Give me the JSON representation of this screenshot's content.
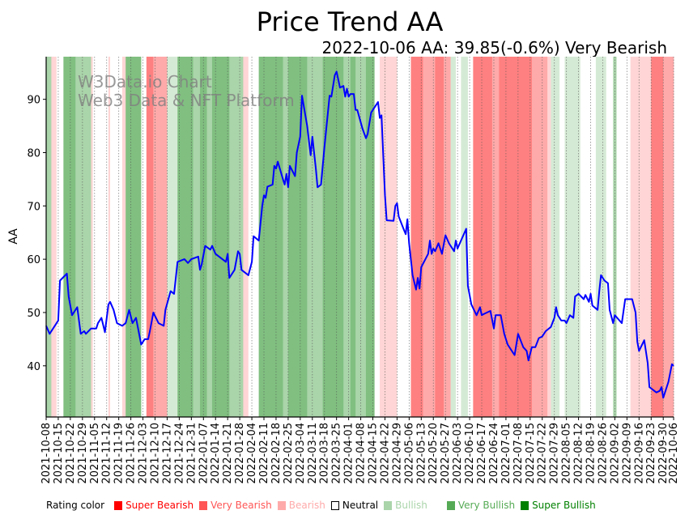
{
  "chart_data": {
    "type": "line",
    "title": "Price Trend AA",
    "subtitle": "2022-10-06 AA: 39.85(-0.6%) Very Bearish",
    "watermark": [
      "W3Data.io Chart",
      "Web3 Data & NFT Platform"
    ],
    "xlabel": "",
    "ylabel": "AA",
    "start_date": "2021-10-08",
    "end_date": "2022-10-06",
    "ylim": [
      30.4,
      98.0
    ],
    "yticks": [
      40,
      50,
      60,
      70,
      80,
      90
    ],
    "xticks": [
      "2021-10-08",
      "2021-10-15",
      "2021-10-22",
      "2021-10-29",
      "2021-11-05",
      "2021-11-12",
      "2021-11-19",
      "2021-11-26",
      "2021-12-03",
      "2021-12-10",
      "2021-12-17",
      "2021-12-24",
      "2021-12-31",
      "2022-01-07",
      "2022-01-14",
      "2022-01-21",
      "2022-01-28",
      "2022-02-04",
      "2022-02-11",
      "2022-02-18",
      "2022-02-25",
      "2022-03-04",
      "2022-03-11",
      "2022-03-18",
      "2022-03-25",
      "2022-04-01",
      "2022-04-08",
      "2022-04-15",
      "2022-04-22",
      "2022-04-29",
      "2022-05-06",
      "2022-05-13",
      "2022-05-20",
      "2022-05-27",
      "2022-06-03",
      "2022-06-10",
      "2022-06-17",
      "2022-06-24",
      "2022-07-01",
      "2022-07-08",
      "2022-07-15",
      "2022-07-22",
      "2022-07-29",
      "2022-08-05",
      "2022-08-12",
      "2022-08-19",
      "2022-08-26",
      "2022-09-02",
      "2022-09-09",
      "2022-09-16",
      "2022-09-23",
      "2022-09-30",
      "2022-10-06"
    ],
    "series": [
      {
        "name": "AA",
        "color": "#0000ff",
        "points_day_value": [
          [
            0,
            47.5
          ],
          [
            2,
            46
          ],
          [
            7,
            48.5
          ],
          [
            8,
            56
          ],
          [
            12,
            57.3
          ],
          [
            13,
            53
          ],
          [
            15,
            49.5
          ],
          [
            18,
            51
          ],
          [
            20,
            46
          ],
          [
            22,
            46.5
          ],
          [
            23,
            46
          ],
          [
            26,
            47
          ],
          [
            29,
            47
          ],
          [
            30,
            48
          ],
          [
            32,
            49
          ],
          [
            34,
            46.3
          ],
          [
            36,
            51.5
          ],
          [
            37,
            52
          ],
          [
            39,
            50.5
          ],
          [
            41,
            48
          ],
          [
            44,
            47.5
          ],
          [
            46,
            48
          ],
          [
            48,
            50.5
          ],
          [
            50,
            48
          ],
          [
            52,
            49
          ],
          [
            55,
            44
          ],
          [
            57,
            45
          ],
          [
            59,
            45
          ],
          [
            60,
            46.5
          ],
          [
            62,
            50
          ],
          [
            65,
            48
          ],
          [
            68,
            47.5
          ],
          [
            69,
            50.5
          ],
          [
            72,
            54
          ],
          [
            74,
            53.5
          ],
          [
            76,
            59.5
          ],
          [
            80,
            60
          ],
          [
            82,
            59.3
          ],
          [
            84,
            60
          ],
          [
            88,
            60.5
          ],
          [
            89,
            58
          ],
          [
            90,
            59
          ],
          [
            92,
            62.5
          ],
          [
            95,
            61.8
          ],
          [
            96,
            62.5
          ],
          [
            98,
            61
          ],
          [
            104,
            59.5
          ],
          [
            105,
            61
          ],
          [
            106,
            56.5
          ],
          [
            109,
            58
          ],
          [
            111,
            61.5
          ],
          [
            112,
            61
          ],
          [
            113,
            58
          ],
          [
            117,
            57
          ],
          [
            119,
            59.5
          ],
          [
            120,
            64.3
          ],
          [
            123,
            63.5
          ],
          [
            125,
            70
          ],
          [
            126,
            72
          ],
          [
            127,
            71.5
          ],
          [
            128,
            73.6
          ],
          [
            131,
            74
          ],
          [
            132,
            77.5
          ],
          [
            133,
            77
          ],
          [
            134,
            78.3
          ],
          [
            137,
            75
          ],
          [
            138,
            74
          ],
          [
            139,
            76
          ],
          [
            140,
            73.5
          ],
          [
            141,
            77.5
          ],
          [
            144,
            75.6
          ],
          [
            145,
            80
          ],
          [
            147,
            83
          ],
          [
            148,
            90.7
          ],
          [
            151,
            85
          ],
          [
            153,
            79.5
          ],
          [
            154,
            83
          ],
          [
            156,
            77
          ],
          [
            157,
            73.5
          ],
          [
            159,
            74
          ],
          [
            161,
            81
          ],
          [
            164,
            90.7
          ],
          [
            165,
            90.5
          ],
          [
            167,
            94.5
          ],
          [
            168,
            95.2
          ],
          [
            170,
            92.2
          ],
          [
            172,
            92.5
          ],
          [
            173,
            90.5
          ],
          [
            174,
            92
          ],
          [
            175,
            90.5
          ],
          [
            176,
            91
          ],
          [
            178,
            91
          ],
          [
            179,
            88
          ],
          [
            180,
            88
          ],
          [
            183,
            84.5
          ],
          [
            185,
            82.7
          ],
          [
            186,
            83.5
          ],
          [
            188,
            87.5
          ],
          [
            192,
            89.5
          ],
          [
            193,
            86.5
          ],
          [
            194,
            87
          ],
          [
            196,
            72
          ],
          [
            197,
            67.3
          ],
          [
            201,
            67.2
          ],
          [
            202,
            70
          ],
          [
            203,
            70.5
          ],
          [
            204,
            68
          ],
          [
            207,
            65.5
          ],
          [
            208,
            64.7
          ],
          [
            209,
            67.5
          ],
          [
            210,
            63
          ],
          [
            212,
            57
          ],
          [
            214,
            54.3
          ],
          [
            215,
            56.5
          ],
          [
            216,
            54.5
          ],
          [
            217,
            58.5
          ],
          [
            221,
            61
          ],
          [
            222,
            63.5
          ],
          [
            223,
            61
          ],
          [
            224,
            62
          ],
          [
            225,
            61.5
          ],
          [
            227,
            63
          ],
          [
            229,
            61
          ],
          [
            231,
            64.5
          ],
          [
            233,
            63
          ],
          [
            236,
            61.5
          ],
          [
            237,
            63.5
          ],
          [
            238,
            62
          ],
          [
            240,
            63.5
          ],
          [
            243,
            65.7
          ],
          [
            244,
            55
          ],
          [
            246,
            51.5
          ],
          [
            249,
            49.5
          ],
          [
            251,
            51
          ],
          [
            252,
            49.5
          ],
          [
            253,
            49.7
          ],
          [
            257,
            50.3
          ],
          [
            259,
            47
          ],
          [
            260,
            49.5
          ],
          [
            263,
            49.5
          ],
          [
            265,
            46
          ],
          [
            267,
            44
          ],
          [
            270,
            42.5
          ],
          [
            271,
            42
          ],
          [
            273,
            46
          ],
          [
            276,
            43.5
          ],
          [
            278,
            42.8
          ],
          [
            279,
            41
          ],
          [
            281,
            43.5
          ],
          [
            283,
            43.5
          ],
          [
            285,
            45.2
          ],
          [
            287,
            45.5
          ],
          [
            289,
            46.5
          ],
          [
            292,
            47.3
          ],
          [
            294,
            49
          ],
          [
            295,
            51
          ],
          [
            296,
            49.5
          ],
          [
            298,
            48.5
          ],
          [
            300,
            48.5
          ],
          [
            301,
            48
          ],
          [
            303,
            49.5
          ],
          [
            305,
            49
          ],
          [
            306,
            53
          ],
          [
            308,
            53.5
          ],
          [
            311,
            52.5
          ],
          [
            312,
            53.3
          ],
          [
            314,
            52
          ],
          [
            315,
            53.5
          ],
          [
            316,
            51.3
          ],
          [
            319,
            50.5
          ],
          [
            320,
            54
          ],
          [
            321,
            57
          ],
          [
            323,
            56
          ],
          [
            325,
            55.5
          ],
          [
            326,
            50.5
          ],
          [
            328,
            48
          ],
          [
            329,
            49.5
          ],
          [
            333,
            48
          ],
          [
            335,
            52.5
          ],
          [
            339,
            52.5
          ],
          [
            341,
            50
          ],
          [
            342,
            44.5
          ],
          [
            343,
            42.8
          ],
          [
            346,
            44.8
          ],
          [
            348,
            40.5
          ],
          [
            349,
            36
          ],
          [
            353,
            35
          ],
          [
            355,
            35.3
          ],
          [
            356,
            36
          ],
          [
            357,
            34
          ],
          [
            360,
            37
          ],
          [
            362,
            40.3
          ],
          [
            363,
            40
          ]
        ]
      }
    ],
    "rating_bands_day_range": [
      [
        0,
        3,
        "very_bullish"
      ],
      [
        3,
        6,
        "bearish"
      ],
      [
        6,
        10,
        "neutral"
      ],
      [
        10,
        17,
        "super_bullish"
      ],
      [
        17,
        26,
        "very_bullish"
      ],
      [
        26,
        27,
        "bearish"
      ],
      [
        27,
        36,
        "neutral"
      ],
      [
        36,
        37,
        "bearish"
      ],
      [
        37,
        44,
        "neutral"
      ],
      [
        44,
        46,
        "bearish"
      ],
      [
        46,
        55,
        "super_bullish"
      ],
      [
        55,
        58,
        "neutral"
      ],
      [
        58,
        62,
        "super_bearish"
      ],
      [
        62,
        70,
        "very_bearish"
      ],
      [
        70,
        76,
        "bullish"
      ],
      [
        76,
        85,
        "super_bullish"
      ],
      [
        85,
        89,
        "very_bullish"
      ],
      [
        89,
        93,
        "super_bullish"
      ],
      [
        93,
        96,
        "very_bullish"
      ],
      [
        96,
        106,
        "super_bullish"
      ],
      [
        106,
        114,
        "very_bullish"
      ],
      [
        114,
        117,
        "bearish"
      ],
      [
        117,
        123,
        "neutral"
      ],
      [
        123,
        137,
        "super_bullish"
      ],
      [
        137,
        140,
        "very_bullish"
      ],
      [
        140,
        151,
        "super_bullish"
      ],
      [
        151,
        160,
        "very_bullish"
      ],
      [
        160,
        172,
        "super_bullish"
      ],
      [
        172,
        176,
        "very_bullish"
      ],
      [
        176,
        179,
        "super_bullish"
      ],
      [
        179,
        185,
        "very_bullish"
      ],
      [
        185,
        190,
        "super_bullish"
      ],
      [
        190,
        193,
        "neutral"
      ],
      [
        193,
        203,
        "bearish"
      ],
      [
        203,
        211,
        "neutral"
      ],
      [
        211,
        218,
        "super_bearish"
      ],
      [
        218,
        225,
        "very_bearish"
      ],
      [
        225,
        230,
        "super_bearish"
      ],
      [
        230,
        234,
        "very_bearish"
      ],
      [
        234,
        237,
        "bullish"
      ],
      [
        237,
        240,
        "neutral"
      ],
      [
        240,
        244,
        "bullish"
      ],
      [
        244,
        247,
        "neutral"
      ],
      [
        247,
        258,
        "super_bearish"
      ],
      [
        258,
        262,
        "very_bearish"
      ],
      [
        262,
        281,
        "super_bearish"
      ],
      [
        281,
        290,
        "very_bearish"
      ],
      [
        290,
        292,
        "bearish"
      ],
      [
        292,
        297,
        "bullish"
      ],
      [
        297,
        300,
        "neutral"
      ],
      [
        300,
        309,
        "bullish"
      ],
      [
        309,
        318,
        "neutral"
      ],
      [
        318,
        324,
        "bullish"
      ],
      [
        324,
        328,
        "neutral"
      ],
      [
        328,
        330,
        "very_bullish"
      ],
      [
        330,
        338,
        "neutral"
      ],
      [
        338,
        350,
        "bearish"
      ],
      [
        350,
        357,
        "super_bearish"
      ],
      [
        357,
        364,
        "very_bearish"
      ]
    ],
    "band_colors": {
      "super_bearish": "#ff8080",
      "very_bearish": "#ffaaaa",
      "bearish": "#ffd5d5",
      "neutral": "#ffffff",
      "bullish": "#d5ead5",
      "very_bullish": "#aad4aa",
      "super_bullish": "#80bf80"
    },
    "legend": {
      "title": "Rating color",
      "items": [
        {
          "key": "super_bearish",
          "label": "Super Bearish",
          "color": "#ff0000"
        },
        {
          "key": "very_bearish",
          "label": "Very Bearish",
          "color": "#ff5555"
        },
        {
          "key": "bearish",
          "label": "Bearish",
          "color": "#ffaaaa"
        },
        {
          "key": "neutral",
          "label": "Neutral",
          "color": "#000000"
        },
        {
          "key": "bullish",
          "label": "Bullish",
          "color": "#aad4aa"
        },
        {
          "key": "very_bullish",
          "label": "Very Bullish",
          "color": "#55aa55"
        },
        {
          "key": "super_bullish",
          "label": "Super Bullish",
          "color": "#008000"
        }
      ]
    }
  }
}
